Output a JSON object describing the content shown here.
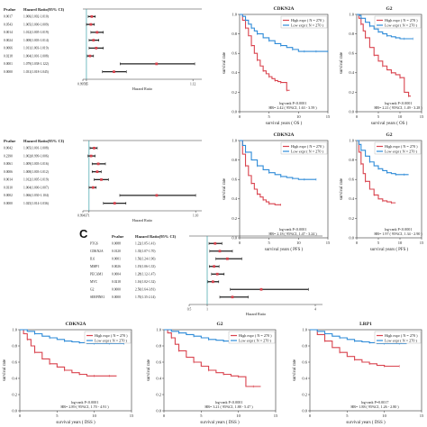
{
  "panel_letters": {
    "c": "C"
  },
  "chart_data": [
    {
      "type": "forest",
      "id": "forest-os",
      "header": {
        "p": "Pvalue",
        "hr": "Hazard Ratio(95% CI)"
      },
      "rows": [
        {
          "p": "0.0017",
          "hr": "1.006(1.002-1.010)",
          "est": 1.006,
          "lo": 1.002,
          "hi": 1.01
        },
        {
          "p": "0.0543",
          "hr": "1.005(1.000-1.009)",
          "est": 1.005,
          "lo": 1.0,
          "hi": 1.009
        },
        {
          "p": "0.0014",
          "hr": "1.012(1.005-1.019)",
          "est": 1.012,
          "lo": 1.005,
          "hi": 1.019
        },
        {
          "p": "0.0024",
          "hr": "1.008(1.003-1.014)",
          "est": 1.008,
          "lo": 1.003,
          "hi": 1.014
        },
        {
          "p": "0.0066",
          "hr": "1.011(1.003-1.019)",
          "est": 1.011,
          "lo": 1.003,
          "hi": 1.019
        },
        {
          "p": "0.0218",
          "hr": "1.004(1.001-1.008)",
          "est": 1.004,
          "lo": 1.001,
          "hi": 1.008
        },
        {
          "p": "0.0001",
          "hr": "1.079(1.038-1.122)",
          "est": 1.079,
          "lo": 1.038,
          "hi": 1.122
        },
        {
          "p": "0.0000",
          "hr": "1.031(1.018-1.045)",
          "est": 1.031,
          "lo": 1.018,
          "hi": 1.045
        }
      ],
      "ticks": [
        "0.99595",
        "1",
        "1.12"
      ],
      "tick_vals": [
        0.996,
        1.0,
        1.12
      ],
      "xlim": [
        0.996,
        1.13
      ],
      "xlabel": "Hazard Ratio"
    },
    {
      "type": "forest",
      "id": "forest-pfs",
      "header": {
        "p": "Pvalue",
        "hr": "Hazard Ratio(95% CI)"
      },
      "rows": [
        {
          "p": "0.0042",
          "hr": "1.005(1.001-1.008)",
          "est": 1.005,
          "lo": 1.001,
          "hi": 1.008
        },
        {
          "p": "0.2390",
          "hr": "1.002(0.999-1.006)",
          "est": 1.002,
          "lo": 0.999,
          "hi": 1.006
        },
        {
          "p": "0.0061",
          "hr": "1.009(1.003-1.016)",
          "est": 1.009,
          "lo": 1.003,
          "hi": 1.016
        },
        {
          "p": "0.0006",
          "hr": "1.008(1.003-1.012)",
          "est": 1.008,
          "lo": 1.003,
          "hi": 1.012
        },
        {
          "p": "0.0014",
          "hr": "1.012(1.005-1.019)",
          "est": 1.012,
          "lo": 1.005,
          "hi": 1.019
        },
        {
          "p": "0.0310",
          "hr": "1.004(1.000-1.007)",
          "est": 1.004,
          "lo": 1.0,
          "hi": 1.007
        },
        {
          "p": "0.0002",
          "hr": "1.066(1.030-1.104)",
          "est": 1.066,
          "lo": 1.03,
          "hi": 1.104
        },
        {
          "p": "0.0000",
          "hr": "1.025(1.014-1.036)",
          "est": 1.025,
          "lo": 1.014,
          "hi": 1.036
        }
      ],
      "ticks": [
        "0.99437",
        "1",
        "1.10"
      ],
      "tick_vals": [
        0.994,
        1.0,
        1.104
      ],
      "xlim": [
        0.994,
        1.11
      ],
      "xlabel": "Hazard Ratio"
    },
    {
      "type": "forest",
      "id": "forest-dss",
      "header": {
        "p": "Pvalue",
        "hr": "Hazard Ratio(95% CI)"
      },
      "rows": [
        {
          "label": "PTGS",
          "p": "0.0088",
          "hr": "1.22(1.05-1.41)",
          "est": 1.22,
          "lo": 1.05,
          "hi": 1.41
        },
        {
          "label": "CDKN2A",
          "p": "0.0120",
          "hr": "1.35(1.07-1.70)",
          "est": 1.35,
          "lo": 1.07,
          "hi": 1.7
        },
        {
          "label": "IL6",
          "p": "0.0001",
          "hr": "1.56(1.24-1.96)",
          "est": 1.56,
          "lo": 1.24,
          "hi": 1.96
        },
        {
          "label": "MMP1",
          "p": "0.0026",
          "hr": "1.19(1.06-1.33)",
          "est": 1.19,
          "lo": 1.06,
          "hi": 1.33
        },
        {
          "label": "PECAM1",
          "p": "0.0004",
          "hr": "1.28(1.12-1.47)",
          "est": 1.28,
          "lo": 1.12,
          "hi": 1.47
        },
        {
          "label": "MYC",
          "p": "0.0218",
          "hr": "1.16(1.02-1.32)",
          "est": 1.16,
          "lo": 1.02,
          "hi": 1.32
        },
        {
          "label": "G2",
          "p": "0.0000",
          "hr": "2.50(1.64-3.81)",
          "est": 2.5,
          "lo": 1.64,
          "hi": 3.81
        },
        {
          "label": "SERPINE1",
          "p": "0.0000",
          "hr": "1.70(1.35-2.14)",
          "est": 1.7,
          "lo": 1.35,
          "hi": 2.14
        }
      ],
      "ticks": [
        "0.5",
        "1",
        "4"
      ],
      "tick_vals": [
        0.5,
        1.0,
        4.0
      ],
      "xlim": [
        0.5,
        4.2
      ],
      "xlabel": "Hazard Ratio"
    },
    {
      "type": "line",
      "id": "km-os-cdkn2a",
      "title": "CDKN2A",
      "ylabel": "survival rate",
      "xlabel": "survival years ( OS )",
      "xlim": [
        0,
        15
      ],
      "ylim": [
        0,
        1
      ],
      "xticks": [
        0,
        5,
        10,
        15
      ],
      "yticks": [
        0,
        0.2,
        0.4,
        0.6,
        0.8,
        1.0
      ],
      "legend": [
        "High expr ( N = 270 )",
        "Low expr ( N = 270 )"
      ],
      "stats": [
        "log-rank P<0.0001",
        "HR= 2.42 ( 95%CI, 1.63 - 3.59 )"
      ],
      "series": [
        {
          "color": "#d9434e",
          "x": [
            0,
            0.5,
            1,
            1.5,
            2,
            2.5,
            3,
            3.5,
            4,
            4.5,
            5,
            5.5,
            6,
            6.5,
            7,
            7.5,
            8,
            8.5
          ],
          "y": [
            1,
            0.94,
            0.86,
            0.78,
            0.68,
            0.6,
            0.53,
            0.47,
            0.42,
            0.39,
            0.36,
            0.34,
            0.32,
            0.31,
            0.3,
            0.3,
            0.22,
            0.22
          ]
        },
        {
          "color": "#2e8bd8",
          "x": [
            0,
            0.5,
            1,
            1.5,
            2,
            2.5,
            3,
            4,
            5,
            6,
            7,
            8,
            9,
            10,
            11,
            12,
            13,
            14,
            15
          ],
          "y": [
            1,
            0.98,
            0.94,
            0.9,
            0.86,
            0.83,
            0.8,
            0.76,
            0.73,
            0.7,
            0.68,
            0.66,
            0.64,
            0.62,
            0.62,
            0.62,
            0.62,
            0.62,
            0.62
          ]
        }
      ]
    },
    {
      "type": "line",
      "id": "km-os-g2",
      "title": "G2",
      "ylabel": "survival rate",
      "xlabel": "survival years ( OS )",
      "xlim": [
        0,
        15
      ],
      "ylim": [
        0,
        1
      ],
      "xticks": [
        0,
        5,
        10,
        15
      ],
      "yticks": [
        0,
        0.2,
        0.4,
        0.6,
        0.8,
        1.0
      ],
      "legend": [
        "High expr ( N = 270 )",
        "Low expr ( N = 270 )"
      ],
      "stats": [
        "log-rank P<0.0001",
        "HR= 2.21 ( 95%CI, 1.49 - 3.28 )"
      ],
      "series": [
        {
          "color": "#d9434e",
          "x": [
            0,
            0.5,
            1,
            1.5,
            2,
            3,
            4,
            5,
            6,
            7,
            8,
            9,
            10,
            11,
            12,
            12.5
          ],
          "y": [
            1,
            0.96,
            0.9,
            0.83,
            0.76,
            0.66,
            0.58,
            0.52,
            0.47,
            0.43,
            0.4,
            0.38,
            0.35,
            0.2,
            0.16,
            0.16
          ]
        },
        {
          "color": "#2e8bd8",
          "x": [
            0,
            0.5,
            1,
            2,
            3,
            4,
            5,
            6,
            7,
            8,
            9,
            10,
            11,
            12,
            13
          ],
          "y": [
            1,
            0.99,
            0.96,
            0.92,
            0.88,
            0.85,
            0.82,
            0.8,
            0.78,
            0.77,
            0.76,
            0.75,
            0.75,
            0.75,
            0.75
          ]
        }
      ]
    },
    {
      "type": "line",
      "id": "km-pfs-cdkn2a",
      "title": "CDKN2A",
      "ylabel": "survival rate",
      "xlabel": "survival years ( PFS )",
      "xlim": [
        0,
        15
      ],
      "ylim": [
        0,
        1
      ],
      "xticks": [
        0,
        5,
        10,
        15
      ],
      "yticks": [
        0,
        0.2,
        0.4,
        0.6,
        0.8,
        1.0
      ],
      "legend": [
        "High expr ( N = 270 )",
        "Low expr ( N = 270 )"
      ],
      "stats": [
        "log-rank P<0.0001",
        "HR= 2.18 ( 95%CI, 1.47 - 3.24 )"
      ],
      "series": [
        {
          "color": "#d9434e",
          "x": [
            0,
            0.5,
            1,
            1.5,
            2,
            2.5,
            3,
            3.5,
            4,
            4.5,
            5,
            6,
            7
          ],
          "y": [
            1,
            0.86,
            0.74,
            0.64,
            0.56,
            0.5,
            0.45,
            0.42,
            0.39,
            0.37,
            0.35,
            0.34,
            0.34
          ]
        },
        {
          "color": "#2e8bd8",
          "x": [
            0,
            0.5,
            1,
            2,
            3,
            4,
            5,
            6,
            7,
            8,
            9,
            10,
            11,
            12,
            13
          ],
          "y": [
            1,
            0.95,
            0.88,
            0.8,
            0.74,
            0.7,
            0.67,
            0.65,
            0.63,
            0.62,
            0.61,
            0.6,
            0.6,
            0.6,
            0.6
          ]
        }
      ]
    },
    {
      "type": "line",
      "id": "km-pfs-g2",
      "title": "G2",
      "ylabel": "survival rate",
      "xlabel": "survival years ( PFS )",
      "xlim": [
        0,
        15
      ],
      "ylim": [
        0,
        1
      ],
      "xticks": [
        0,
        5,
        10,
        15
      ],
      "yticks": [
        0,
        0.2,
        0.4,
        0.6,
        0.8,
        1.0
      ],
      "legend": [
        "High expr ( N = 270 )",
        "Low expr ( N = 270 )"
      ],
      "stats": [
        "log-rank P<0.0001",
        "HR= 1.97 ( 95%CI, 1.34 - 2.90 )"
      ],
      "series": [
        {
          "color": "#d9434e",
          "x": [
            0,
            0.5,
            1,
            1.5,
            2,
            3,
            4,
            5,
            6,
            7,
            8,
            9
          ],
          "y": [
            1,
            0.88,
            0.76,
            0.66,
            0.58,
            0.5,
            0.44,
            0.4,
            0.38,
            0.37,
            0.36,
            0.36
          ]
        },
        {
          "color": "#2e8bd8",
          "x": [
            0,
            0.5,
            1,
            2,
            3,
            4,
            5,
            6,
            7,
            8,
            9,
            10,
            11,
            12
          ],
          "y": [
            1,
            0.96,
            0.9,
            0.84,
            0.78,
            0.74,
            0.71,
            0.69,
            0.67,
            0.66,
            0.65,
            0.65,
            0.65,
            0.65
          ]
        }
      ]
    },
    {
      "type": "line",
      "id": "km-dss-cdkn2a",
      "title": "CDKN2A",
      "ylabel": "survival rate",
      "xlabel": "survival years ( DSS )",
      "xlim": [
        0,
        15
      ],
      "ylim": [
        0,
        1
      ],
      "xticks": [
        0,
        5,
        10,
        15
      ],
      "yticks": [
        0,
        0.2,
        0.4,
        0.6,
        0.8,
        1.0
      ],
      "legend": [
        "High expr ( N = 270 )",
        "Low expr ( N = 270 )"
      ],
      "stats": [
        "log-rank P<0.0001",
        "HR= 2.89 ( 95%CI, 1.70 - 4.91 )"
      ],
      "series": [
        {
          "color": "#d9434e",
          "x": [
            0,
            0.5,
            1,
            1.5,
            2,
            3,
            4,
            5,
            6,
            7,
            8,
            9,
            10,
            11,
            12,
            13
          ],
          "y": [
            1,
            0.95,
            0.88,
            0.8,
            0.72,
            0.64,
            0.58,
            0.54,
            0.5,
            0.47,
            0.45,
            0.43,
            0.43,
            0.43,
            0.43,
            0.43
          ]
        },
        {
          "color": "#2e8bd8",
          "x": [
            0,
            1,
            2,
            3,
            4,
            5,
            6,
            7,
            8,
            9,
            10,
            11,
            12,
            13,
            14
          ],
          "y": [
            1,
            0.98,
            0.95,
            0.92,
            0.9,
            0.88,
            0.86,
            0.85,
            0.84,
            0.83,
            0.83,
            0.83,
            0.83,
            0.83,
            0.83
          ]
        }
      ]
    },
    {
      "type": "line",
      "id": "km-dss-g2",
      "title": "G2",
      "ylabel": "survival rate",
      "xlabel": "survival years ( DSS )",
      "xlim": [
        0,
        15
      ],
      "ylim": [
        0,
        1
      ],
      "xticks": [
        0,
        5,
        10,
        15
      ],
      "yticks": [
        0,
        0.2,
        0.4,
        0.6,
        0.8,
        1.0
      ],
      "legend": [
        "High expr ( N = 270 )",
        "Low expr ( N = 270 )"
      ],
      "stats": [
        "log-rank P<0.0001",
        "HR= 3.21 ( 95%CI, 1.88 - 5.47 )"
      ],
      "series": [
        {
          "color": "#d9434e",
          "x": [
            0,
            0.5,
            1,
            1.5,
            2,
            3,
            4,
            5,
            6,
            7,
            8,
            9,
            10,
            11,
            12,
            13
          ],
          "y": [
            1,
            0.96,
            0.9,
            0.82,
            0.74,
            0.66,
            0.6,
            0.55,
            0.5,
            0.47,
            0.45,
            0.43,
            0.42,
            0.3,
            0.3,
            0.3
          ]
        },
        {
          "color": "#2e8bd8",
          "x": [
            0,
            1,
            2,
            3,
            4,
            5,
            6,
            7,
            8,
            9,
            10,
            11,
            12,
            13
          ],
          "y": [
            1,
            0.98,
            0.96,
            0.94,
            0.92,
            0.9,
            0.88,
            0.87,
            0.86,
            0.85,
            0.85,
            0.85,
            0.85,
            0.85
          ]
        }
      ]
    },
    {
      "type": "line",
      "id": "km-dss-lrp1",
      "title": "LRP1",
      "ylabel": "survival rate",
      "xlabel": "survival years ( DSS )",
      "xlim": [
        0,
        15
      ],
      "ylim": [
        0,
        1
      ],
      "xticks": [
        0,
        5,
        10,
        15
      ],
      "yticks": [
        0,
        0.2,
        0.4,
        0.6,
        0.8,
        1.0
      ],
      "legend": [
        "High expr ( N = 270 )",
        "Low expr ( N = 270 )"
      ],
      "stats": [
        "log-rank P=0.0017",
        "HR= 1.88 ( 95%CI, 1.26 - 2.80 )"
      ],
      "series": [
        {
          "color": "#d9434e",
          "x": [
            0,
            1,
            2,
            3,
            4,
            5,
            6,
            7,
            8,
            9,
            10,
            11,
            12
          ],
          "y": [
            1,
            0.94,
            0.86,
            0.78,
            0.72,
            0.67,
            0.63,
            0.6,
            0.58,
            0.56,
            0.55,
            0.55,
            0.55
          ]
        },
        {
          "color": "#2e8bd8",
          "x": [
            0,
            1,
            2,
            3,
            4,
            5,
            6,
            7,
            8,
            9,
            10,
            11,
            12,
            13
          ],
          "y": [
            1,
            0.98,
            0.95,
            0.92,
            0.9,
            0.88,
            0.86,
            0.85,
            0.84,
            0.83,
            0.83,
            0.83,
            0.83,
            0.83
          ]
        }
      ]
    }
  ]
}
